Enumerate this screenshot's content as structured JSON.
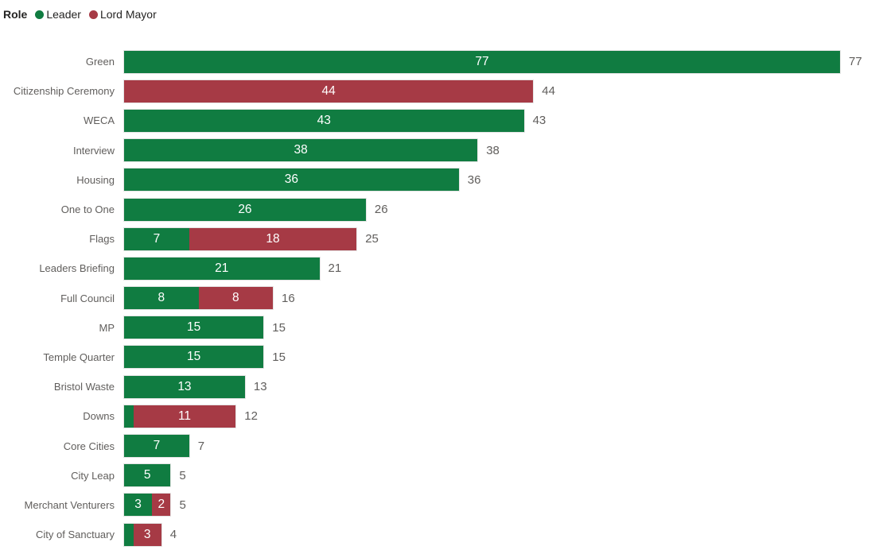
{
  "legend": {
    "title": "Role",
    "items": [
      {
        "label": "Leader",
        "color": "#107C41"
      },
      {
        "label": "Lord Mayor",
        "color": "#A63A45"
      }
    ]
  },
  "chart_data": {
    "type": "bar",
    "orientation": "horizontal",
    "stacked": true,
    "title": "",
    "xlabel": "",
    "ylabel": "",
    "grid": false,
    "legend_position": "top-left",
    "xlim": [
      0,
      77
    ],
    "categories": [
      "Green",
      "Citizenship Ceremony",
      "WECA",
      "Interview",
      "Housing",
      "One to One",
      "Flags",
      "Leaders Briefing",
      "Full Council",
      "MP",
      "Temple Quarter",
      "Bristol Waste",
      "Downs",
      "Core Cities",
      "City Leap",
      "Merchant Venturers",
      "City of Sanctuary"
    ],
    "series": [
      {
        "name": "Leader",
        "color": "#107C41",
        "values": [
          77,
          0,
          43,
          38,
          36,
          26,
          7,
          21,
          8,
          15,
          15,
          13,
          1,
          7,
          5,
          3,
          1
        ]
      },
      {
        "name": "Lord Mayor",
        "color": "#A63A45",
        "values": [
          0,
          44,
          0,
          0,
          0,
          0,
          18,
          0,
          8,
          0,
          0,
          0,
          11,
          0,
          0,
          2,
          3
        ]
      }
    ],
    "totals": [
      77,
      44,
      43,
      38,
      36,
      26,
      25,
      21,
      16,
      15,
      15,
      13,
      12,
      7,
      5,
      5,
      4
    ],
    "data_label_color": "#FFFFFF",
    "total_label_color": "#605E5C",
    "category_label_color": "#605E5C"
  }
}
